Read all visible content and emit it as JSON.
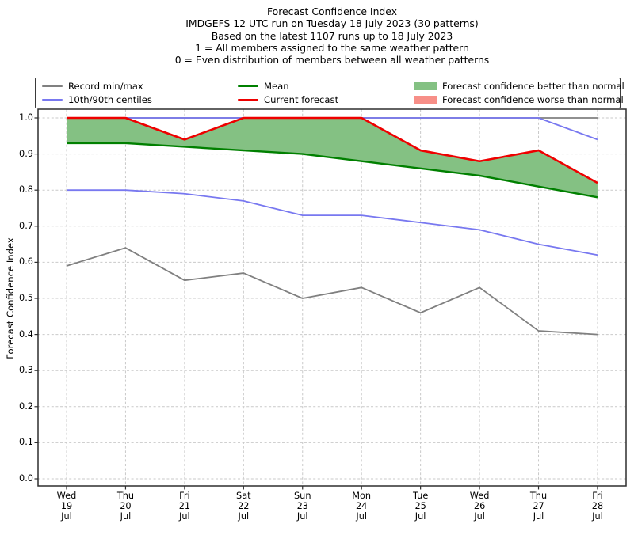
{
  "title_lines": [
    "Forecast Confidence Index",
    "IMDGEFS 12 UTC run on Tuesday 18 July 2023 (30 patterns)",
    "Based on the latest 1107 runs up to 18 July 2023",
    "1 = All members assigned to the same weather pattern",
    "0 = Even distribution of members between all weather patterns"
  ],
  "legend": {
    "items": [
      {
        "label": "Record min/max",
        "type": "line",
        "color": "#808080"
      },
      {
        "label": "10th/90th centiles",
        "type": "line",
        "color": "#7878f0"
      },
      {
        "label": "Mean",
        "type": "line",
        "color": "#008000"
      },
      {
        "label": "Current forecast",
        "type": "line",
        "color": "#ee0000"
      },
      {
        "label": "Forecast confidence better than normal",
        "type": "patch",
        "color": "#84c183"
      },
      {
        "label": "Forecast confidence worse than normal",
        "type": "patch",
        "color": "#f78f88"
      }
    ]
  },
  "chart_data": {
    "type": "line",
    "title": "Forecast Confidence Index",
    "ylabel": "Forecast Confidence Index",
    "xlabel": "",
    "ylim": [
      0.0,
      1.0
    ],
    "grid": true,
    "legend_position": "top",
    "yticks": [
      0.0,
      0.1,
      0.2,
      0.3,
      0.4,
      0.5,
      0.6,
      0.7,
      0.8,
      0.9,
      1.0
    ],
    "ytick_labels": [
      "0.0",
      "0.1",
      "0.2",
      "0.3",
      "0.4",
      "0.5",
      "0.6",
      "0.7",
      "0.8",
      "0.9",
      "1.0"
    ],
    "x_ticklabels": [
      [
        "Wed",
        "19",
        "Jul"
      ],
      [
        "Thu",
        "20",
        "Jul"
      ],
      [
        "Fri",
        "21",
        "Jul"
      ],
      [
        "Sat",
        "22",
        "Jul"
      ],
      [
        "Sun",
        "23",
        "Jul"
      ],
      [
        "Mon",
        "24",
        "Jul"
      ],
      [
        "Tue",
        "25",
        "Jul"
      ],
      [
        "Wed",
        "26",
        "Jul"
      ],
      [
        "Thu",
        "27",
        "Jul"
      ],
      [
        "Fri",
        "28",
        "Jul"
      ]
    ],
    "series": [
      {
        "name": "Record max",
        "color": "#808080",
        "values": [
          1.0,
          1.0,
          1.0,
          1.0,
          1.0,
          1.0,
          1.0,
          1.0,
          1.0,
          1.0
        ]
      },
      {
        "name": "Record min",
        "color": "#808080",
        "values": [
          0.59,
          0.64,
          0.55,
          0.57,
          0.5,
          0.53,
          0.46,
          0.53,
          0.41,
          0.4
        ]
      },
      {
        "name": "90th centile",
        "color": "#7878f0",
        "values": [
          1.0,
          1.0,
          1.0,
          1.0,
          1.0,
          1.0,
          1.0,
          1.0,
          1.0,
          0.94
        ]
      },
      {
        "name": "10th centile",
        "color": "#7878f0",
        "values": [
          0.8,
          0.8,
          0.79,
          0.77,
          0.73,
          0.73,
          0.71,
          0.69,
          0.65,
          0.62
        ]
      },
      {
        "name": "Mean",
        "color": "#008000",
        "values": [
          0.93,
          0.93,
          0.92,
          0.91,
          0.9,
          0.88,
          0.86,
          0.84,
          0.81,
          0.78
        ]
      },
      {
        "name": "Current forecast",
        "color": "#ee0000",
        "values": [
          1.0,
          1.0,
          0.94,
          1.0,
          1.0,
          1.0,
          0.91,
          0.88,
          0.91,
          0.82
        ]
      }
    ],
    "fill_between": {
      "upper": "Current forecast",
      "lower": "Mean",
      "better_color": "#84c183",
      "worse_color": "#f78f88"
    },
    "grid_color": "#c9c9c9",
    "spine_color": "#2e2e2e"
  }
}
